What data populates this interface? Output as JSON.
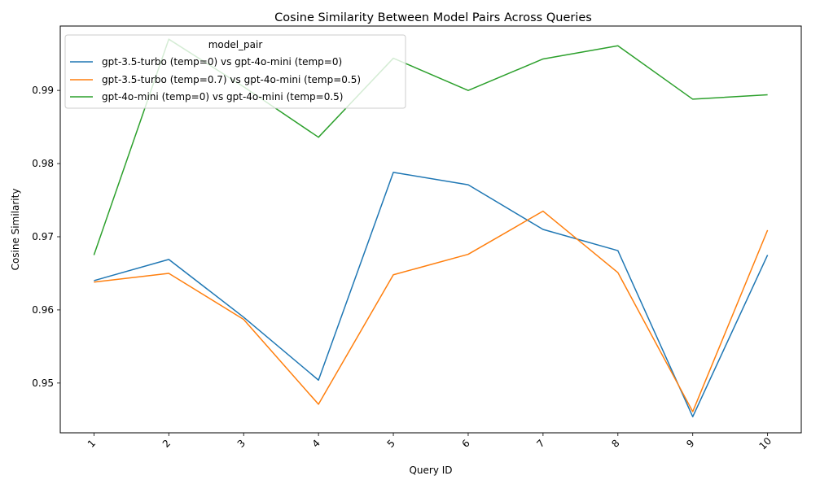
{
  "chart_data": {
    "type": "line",
    "title": "Cosine Similarity Between Model Pairs Across Queries",
    "xlabel": "Query ID",
    "ylabel": "Cosine Similarity",
    "x": [
      1,
      2,
      3,
      4,
      5,
      6,
      7,
      8,
      9,
      10
    ],
    "xticks": [
      "1",
      "2",
      "3",
      "4",
      "5",
      "6",
      "7",
      "8",
      "9",
      "10"
    ],
    "yticks": [
      0.95,
      0.96,
      0.97,
      0.98,
      0.99
    ],
    "ytick_labels": [
      "0.95",
      "0.96",
      "0.97",
      "0.98",
      "0.99"
    ],
    "ylim": [
      0.9432,
      0.9988
    ],
    "grid": false,
    "legend_title": "model_pair",
    "legend_position": "top-left",
    "series": [
      {
        "name": "gpt-3.5-turbo (temp=0) vs gpt-4o-mini (temp=0)",
        "color": "#1f77b4",
        "values": [
          0.964,
          0.9669,
          0.959,
          0.9504,
          0.9788,
          0.9771,
          0.971,
          0.9681,
          0.9454,
          0.9675
        ]
      },
      {
        "name": "gpt-3.5-turbo (temp=0.7) vs gpt-4o-mini (temp=0.5)",
        "color": "#ff7f0e",
        "values": [
          0.9638,
          0.965,
          0.9587,
          0.9471,
          0.9648,
          0.9676,
          0.9735,
          0.9651,
          0.9461,
          0.9709
        ]
      },
      {
        "name": "gpt-4o-mini (temp=0) vs gpt-4o-mini (temp=0.5)",
        "color": "#2ca02c",
        "values": [
          0.9675,
          0.997,
          0.9905,
          0.9836,
          0.9944,
          0.99,
          0.9943,
          0.9961,
          0.9888,
          0.9894
        ]
      }
    ]
  }
}
